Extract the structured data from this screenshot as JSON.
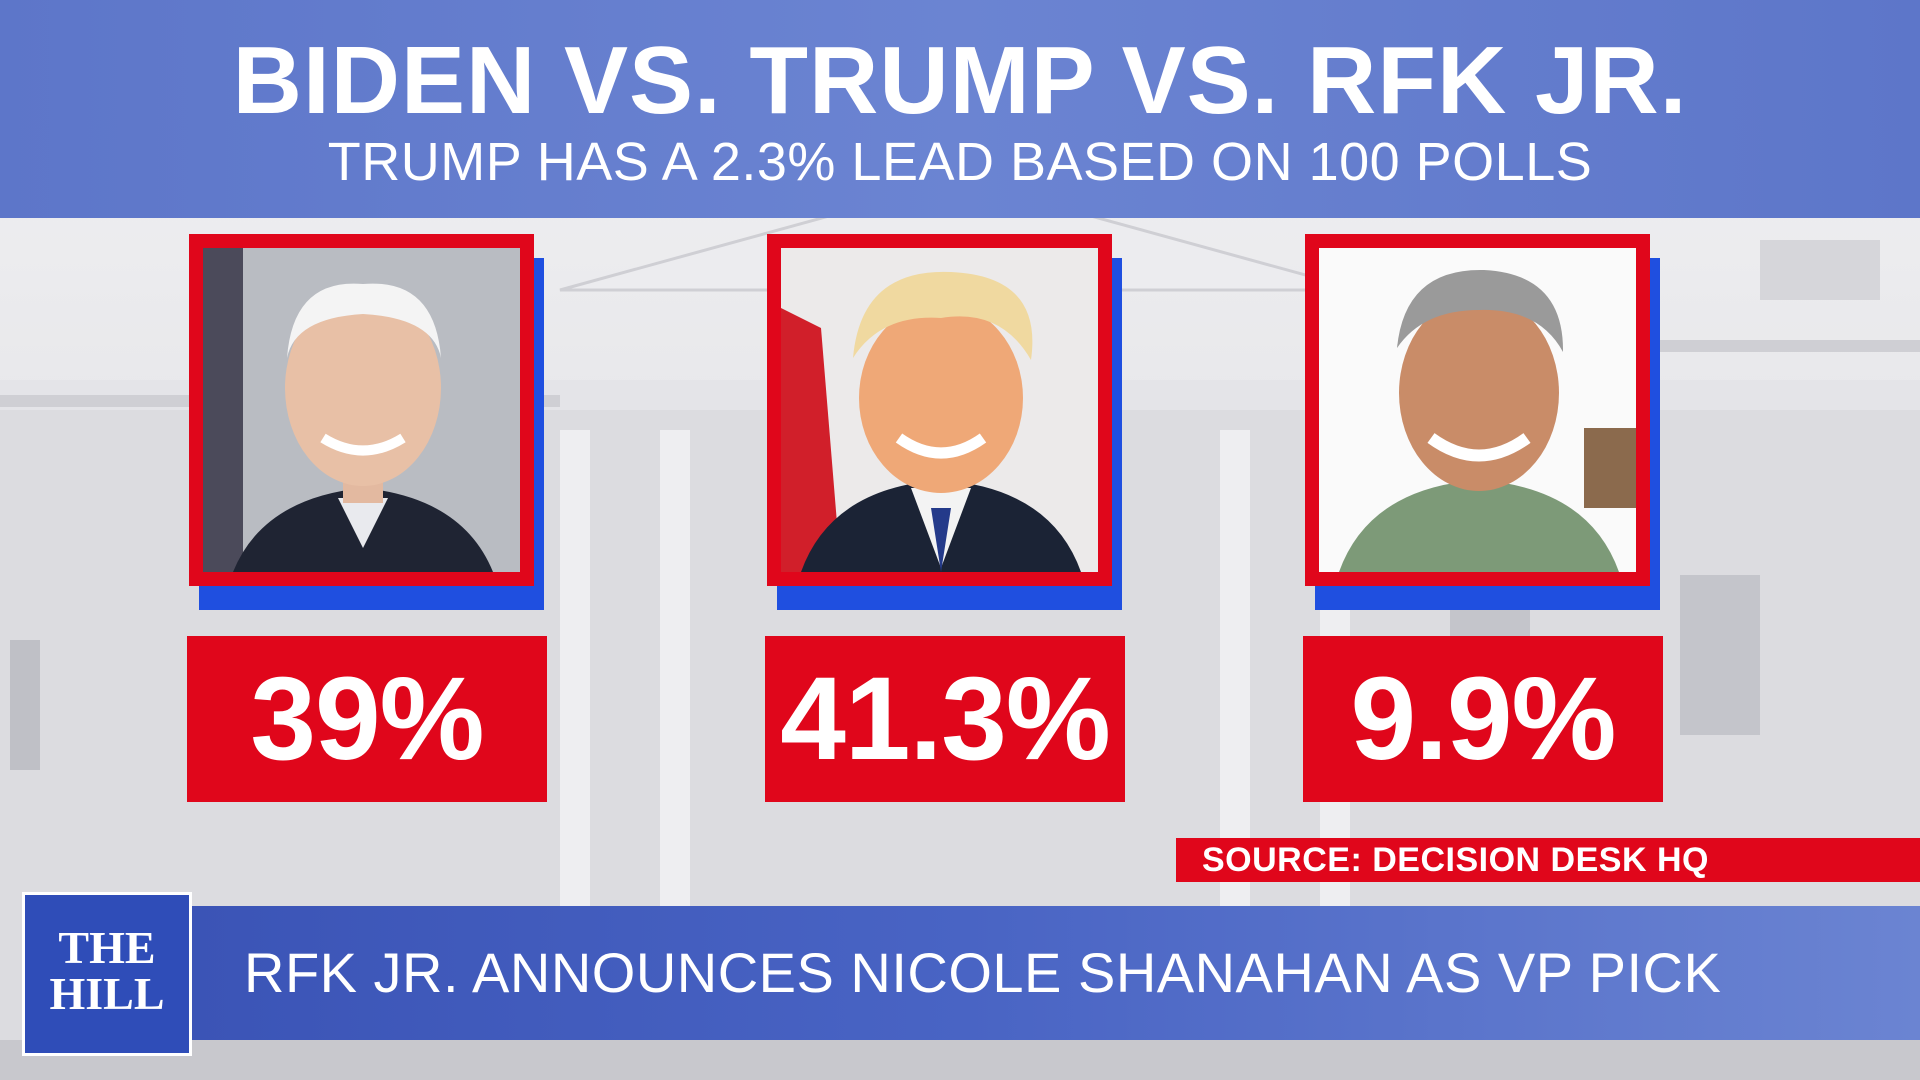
{
  "header": {
    "title": "BIDEN VS. TRUMP VS. RFK JR.",
    "subtitle": "TRUMP HAS A 2.3% LEAD BASED ON 100 POLLS"
  },
  "candidates": [
    {
      "portrait": "biden-portrait",
      "percent": "39%"
    },
    {
      "portrait": "trump-portrait",
      "percent": "41.3%"
    },
    {
      "portrait": "rfk-jr-portrait",
      "percent": "9.9%"
    }
  ],
  "source": "SOURCE: DECISION DESK HQ",
  "lower_third": {
    "headline": "RFK JR. ANNOUNCES NICOLE SHANAHAN AS VP PICK",
    "logo_line1": "THE",
    "logo_line2": "HILL"
  },
  "colors": {
    "header_blue": "#6b84d2",
    "accent_red": "#e0061b",
    "shadow_blue": "#1f4fe0",
    "lower_bar_blue": "#3b54b6"
  }
}
